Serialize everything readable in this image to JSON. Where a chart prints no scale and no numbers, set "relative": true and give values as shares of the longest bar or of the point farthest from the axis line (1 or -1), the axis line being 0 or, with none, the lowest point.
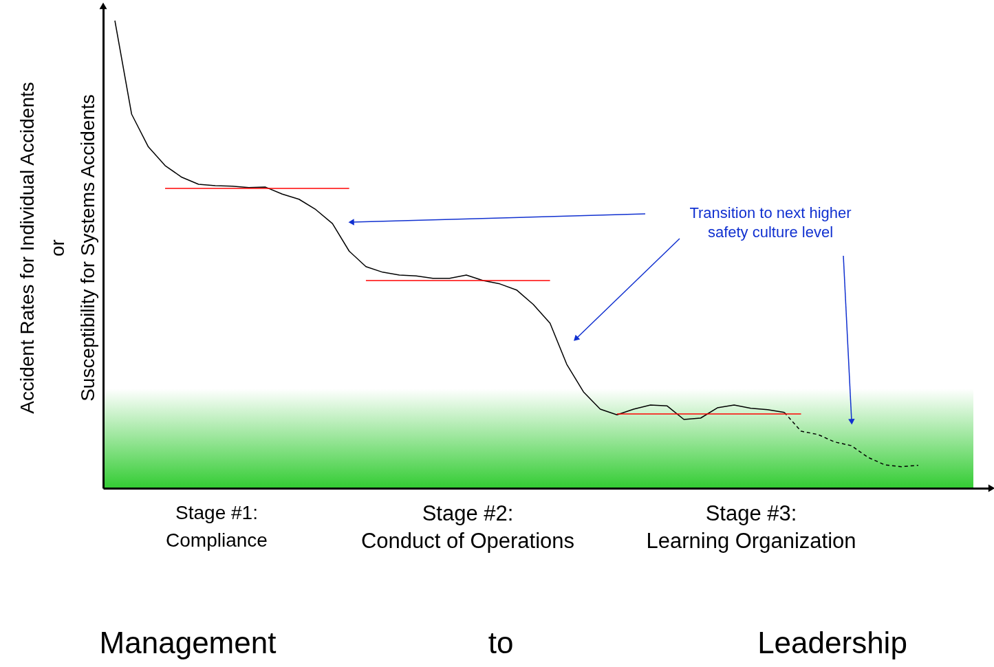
{
  "chart_data": {
    "type": "line",
    "relative": true,
    "ylabel": "Accident Rates for Individual Accidents\nor\nSusceptibility for Systems Accidents",
    "categories": [
      null,
      null,
      null,
      null,
      null,
      null,
      null,
      null,
      null,
      null,
      null,
      null,
      null,
      null,
      null,
      null,
      null,
      null,
      null,
      null,
      null,
      null,
      null,
      null,
      null,
      null,
      null,
      null,
      null,
      null,
      null,
      null,
      null,
      null,
      null,
      null,
      null,
      null,
      null,
      null,
      null,
      null,
      null,
      null,
      null,
      null,
      null,
      null,
      null
    ],
    "series": [
      {
        "color": "#000000",
        "line_style": "solid",
        "values": [
          1.0,
          0.8,
          0.73,
          0.69,
          0.665,
          0.65,
          0.647,
          0.646,
          0.643,
          0.644,
          0.629,
          0.618,
          0.596,
          0.566,
          0.507,
          0.474,
          0.462,
          0.456,
          0.454,
          0.449,
          0.449,
          0.456,
          0.444,
          0.437,
          0.424,
          0.393,
          0.353,
          0.265,
          0.206,
          0.169,
          0.157,
          0.169,
          0.178,
          0.176,
          0.147,
          0.15,
          0.172,
          0.178,
          0.171,
          0.168,
          0.162,
          null,
          null,
          null,
          null,
          null,
          null,
          null,
          null
        ]
      },
      {
        "color": "#000000",
        "line_style": "dashed",
        "values": [
          null,
          null,
          null,
          null,
          null,
          null,
          null,
          null,
          null,
          null,
          null,
          null,
          null,
          null,
          null,
          null,
          null,
          null,
          null,
          null,
          null,
          null,
          null,
          null,
          null,
          null,
          null,
          null,
          null,
          null,
          null,
          null,
          null,
          null,
          null,
          null,
          null,
          null,
          null,
          null,
          0.162,
          0.122,
          0.115,
          0.099,
          0.091,
          0.066,
          0.05,
          0.046,
          0.049
        ]
      },
      {
        "color": "#ff0000",
        "line_style": "solid",
        "values": [
          null,
          null,
          null,
          0.641,
          0.641,
          0.641,
          0.641,
          0.641,
          0.641,
          0.641,
          0.641,
          0.641,
          0.641,
          0.641,
          0.641,
          null,
          null,
          null,
          null,
          null,
          null,
          null,
          null,
          null,
          null,
          null,
          null,
          null,
          null,
          null,
          null,
          null,
          null,
          null,
          null,
          null,
          null,
          null,
          null,
          null,
          null,
          null,
          null,
          null,
          null,
          null,
          null,
          null,
          null
        ]
      },
      {
        "color": "#ff0000",
        "line_style": "solid",
        "values": [
          null,
          null,
          null,
          null,
          null,
          null,
          null,
          null,
          null,
          null,
          null,
          null,
          null,
          null,
          null,
          0.444,
          0.444,
          0.444,
          0.444,
          0.444,
          0.444,
          0.444,
          0.444,
          0.444,
          0.444,
          0.444,
          0.444,
          null,
          null,
          null,
          null,
          null,
          null,
          null,
          null,
          null,
          null,
          null,
          null,
          null,
          null,
          null,
          null,
          null,
          null,
          null,
          null,
          null,
          null
        ]
      },
      {
        "color": "#ff0000",
        "line_style": "solid",
        "values": [
          null,
          null,
          null,
          null,
          null,
          null,
          null,
          null,
          null,
          null,
          null,
          null,
          null,
          null,
          null,
          null,
          null,
          null,
          null,
          null,
          null,
          null,
          null,
          null,
          null,
          null,
          null,
          null,
          null,
          null,
          0.159,
          0.159,
          0.159,
          0.159,
          0.159,
          0.159,
          0.159,
          0.159,
          0.159,
          0.159,
          0.159,
          0.159,
          null,
          null,
          null,
          null,
          null,
          null,
          null
        ]
      }
    ],
    "bands": [
      {
        "axis": "y",
        "from": 0,
        "to": 0.213,
        "color": "#33cc33"
      }
    ],
    "annotations": [
      "Transition to next higher\nsafety culture level",
      "Stage #1:\nCompliance",
      "Stage #2:\nConduct of Operations",
      "Stage #3:\nLearning Organization",
      "Management",
      "to",
      "Leadership"
    ],
    "grid": false,
    "tick_labels": false
  }
}
